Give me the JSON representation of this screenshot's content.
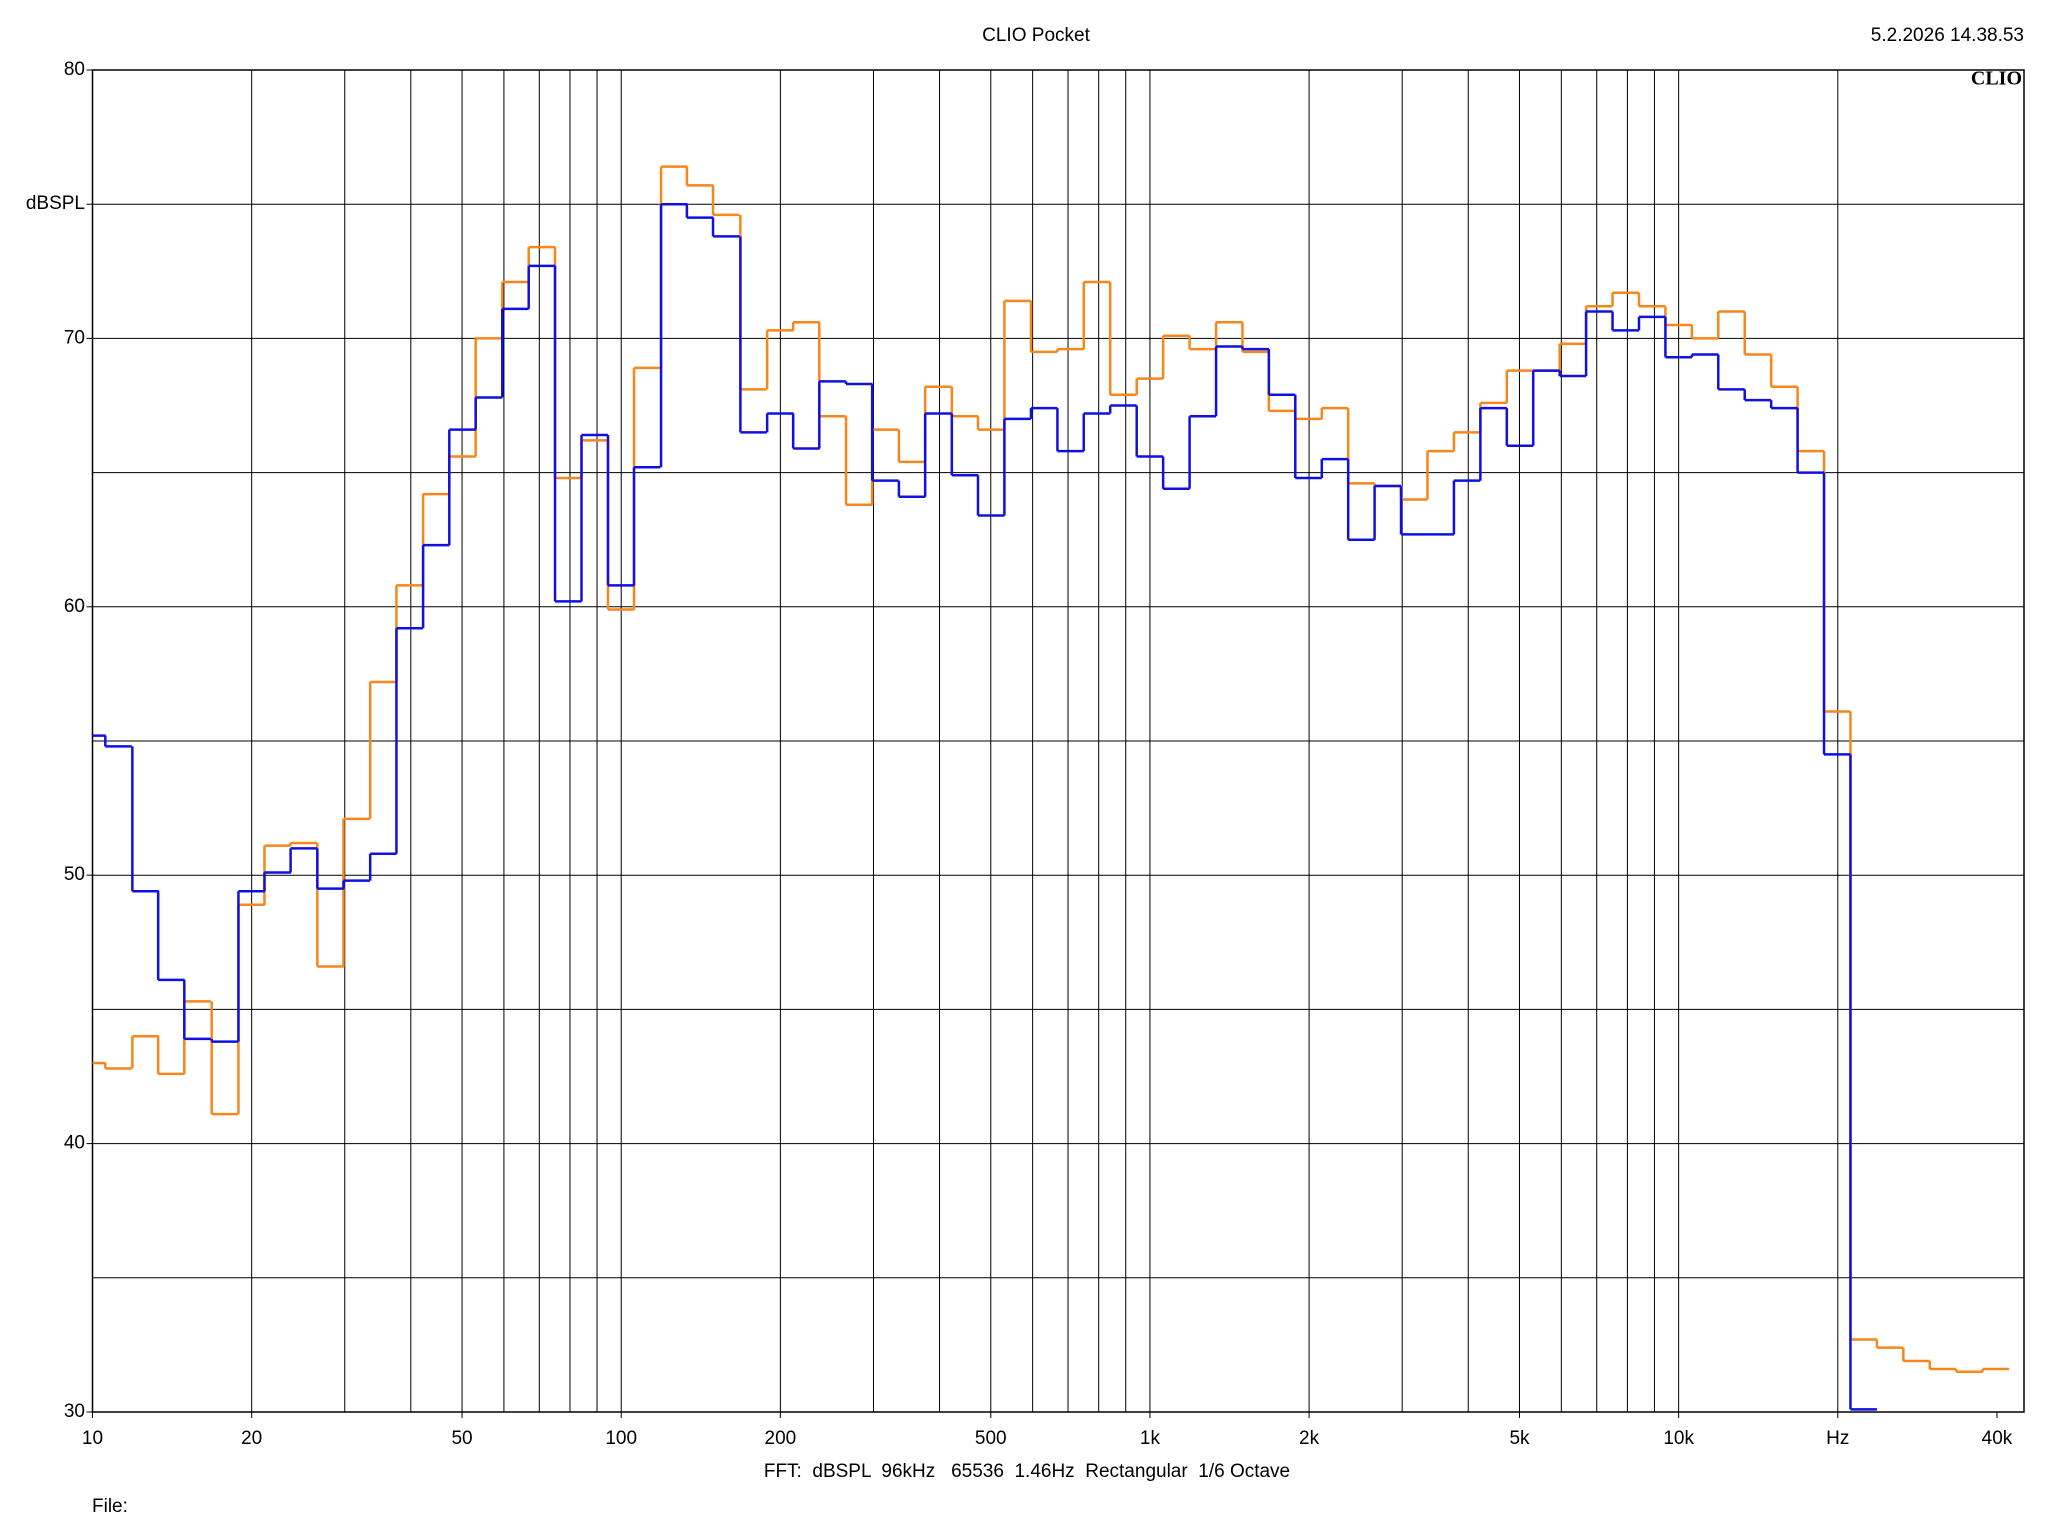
{
  "chart_data": {
    "type": "step",
    "title": "CLIO Pocket",
    "timestamp": "5.2.2026 14.38.53",
    "logo": "CLIO",
    "footer": "FFT:  dBSPL  96kHz   65536  1.46Hz  Rectangular  1/6 Octave",
    "file_label": "File:",
    "log_x": true,
    "xlim": [
      10,
      45000
    ],
    "ylim": [
      30,
      80
    ],
    "xticks": [
      10,
      20,
      50,
      100,
      200,
      500,
      {
        "value": 1000,
        "label": "1k"
      },
      {
        "value": 2000,
        "label": "2k"
      },
      {
        "value": 5000,
        "label": "5k"
      },
      {
        "value": 10000,
        "label": "10k"
      },
      {
        "value": 20000,
        "label": "Hz"
      },
      {
        "value": 40000,
        "label": "40k"
      }
    ],
    "yticks": [
      30,
      40,
      50,
      60,
      70,
      {
        "value": 75,
        "label": "dBSPL"
      },
      80
    ],
    "x_gridlines": [
      20,
      30,
      40,
      50,
      60,
      70,
      80,
      90,
      100,
      200,
      300,
      400,
      500,
      600,
      700,
      800,
      900,
      1000,
      2000,
      3000,
      4000,
      5000,
      6000,
      7000,
      8000,
      9000,
      10000,
      20000
    ],
    "y_gridlines": [
      35,
      40,
      45,
      50,
      55,
      60,
      65,
      70,
      75
    ],
    "x": [
      10,
      11.2,
      12.6,
      14.1,
      15.8,
      17.8,
      20,
      22.4,
      25.1,
      28.2,
      31.6,
      35.5,
      39.8,
      44.7,
      50.1,
      56.2,
      63.1,
      70.8,
      79.4,
      89.1,
      100,
      112,
      126,
      141,
      158,
      178,
      200,
      224,
      251,
      282,
      316,
      355,
      398,
      447,
      501,
      562,
      631,
      708,
      794,
      891,
      1000,
      1122,
      1259,
      1413,
      1585,
      1778,
      1995,
      2239,
      2512,
      2818,
      3162,
      3548,
      3981,
      4467,
      5012,
      5623,
      6310,
      7079,
      7943,
      8913,
      10000,
      11220,
      12589,
      14125,
      15849,
      17783,
      19953,
      22387,
      25119,
      28184,
      31623,
      35481,
      39811
    ],
    "series": [
      {
        "color": "#f7861b",
        "values": [
          43.0,
          42.8,
          44.0,
          42.6,
          45.3,
          41.1,
          48.9,
          51.1,
          51.2,
          46.6,
          52.1,
          57.2,
          60.8,
          64.2,
          65.6,
          70.0,
          72.1,
          73.4,
          64.8,
          66.2,
          59.9,
          68.9,
          76.4,
          75.7,
          74.6,
          68.1,
          70.3,
          70.6,
          67.1,
          63.8,
          66.6,
          65.4,
          68.2,
          67.1,
          66.6,
          71.4,
          69.5,
          69.6,
          72.1,
          67.9,
          68.5,
          70.1,
          69.6,
          70.6,
          69.5,
          67.3,
          67.0,
          67.4,
          64.6,
          64.5,
          64.0,
          65.8,
          66.5,
          67.6,
          68.8,
          68.8,
          69.8,
          71.2,
          71.7,
          71.2,
          70.5,
          70.0,
          71.0,
          69.4,
          68.2,
          65.8,
          56.1,
          32.7,
          32.4,
          31.9,
          31.6,
          31.5,
          31.6
        ]
      },
      {
        "color": "#1010e0",
        "values": [
          55.2,
          54.8,
          49.4,
          46.1,
          43.9,
          43.8,
          49.4,
          50.1,
          51.0,
          49.5,
          49.8,
          50.8,
          59.2,
          62.3,
          66.6,
          67.8,
          71.1,
          72.7,
          60.2,
          66.4,
          60.8,
          65.2,
          75.0,
          74.5,
          73.8,
          66.5,
          67.2,
          65.9,
          68.4,
          68.3,
          64.7,
          64.1,
          67.2,
          64.9,
          63.4,
          67.0,
          67.4,
          65.8,
          67.2,
          67.5,
          65.6,
          64.4,
          67.1,
          69.7,
          69.6,
          67.9,
          64.8,
          65.5,
          62.5,
          64.5,
          62.7,
          62.7,
          64.7,
          67.4,
          66.0,
          68.8,
          68.6,
          71.0,
          70.3,
          70.8,
          69.3,
          69.4,
          68.1,
          67.7,
          67.4,
          65.0,
          54.5,
          30.1,
          null,
          null,
          null,
          null,
          null
        ]
      }
    ]
  }
}
